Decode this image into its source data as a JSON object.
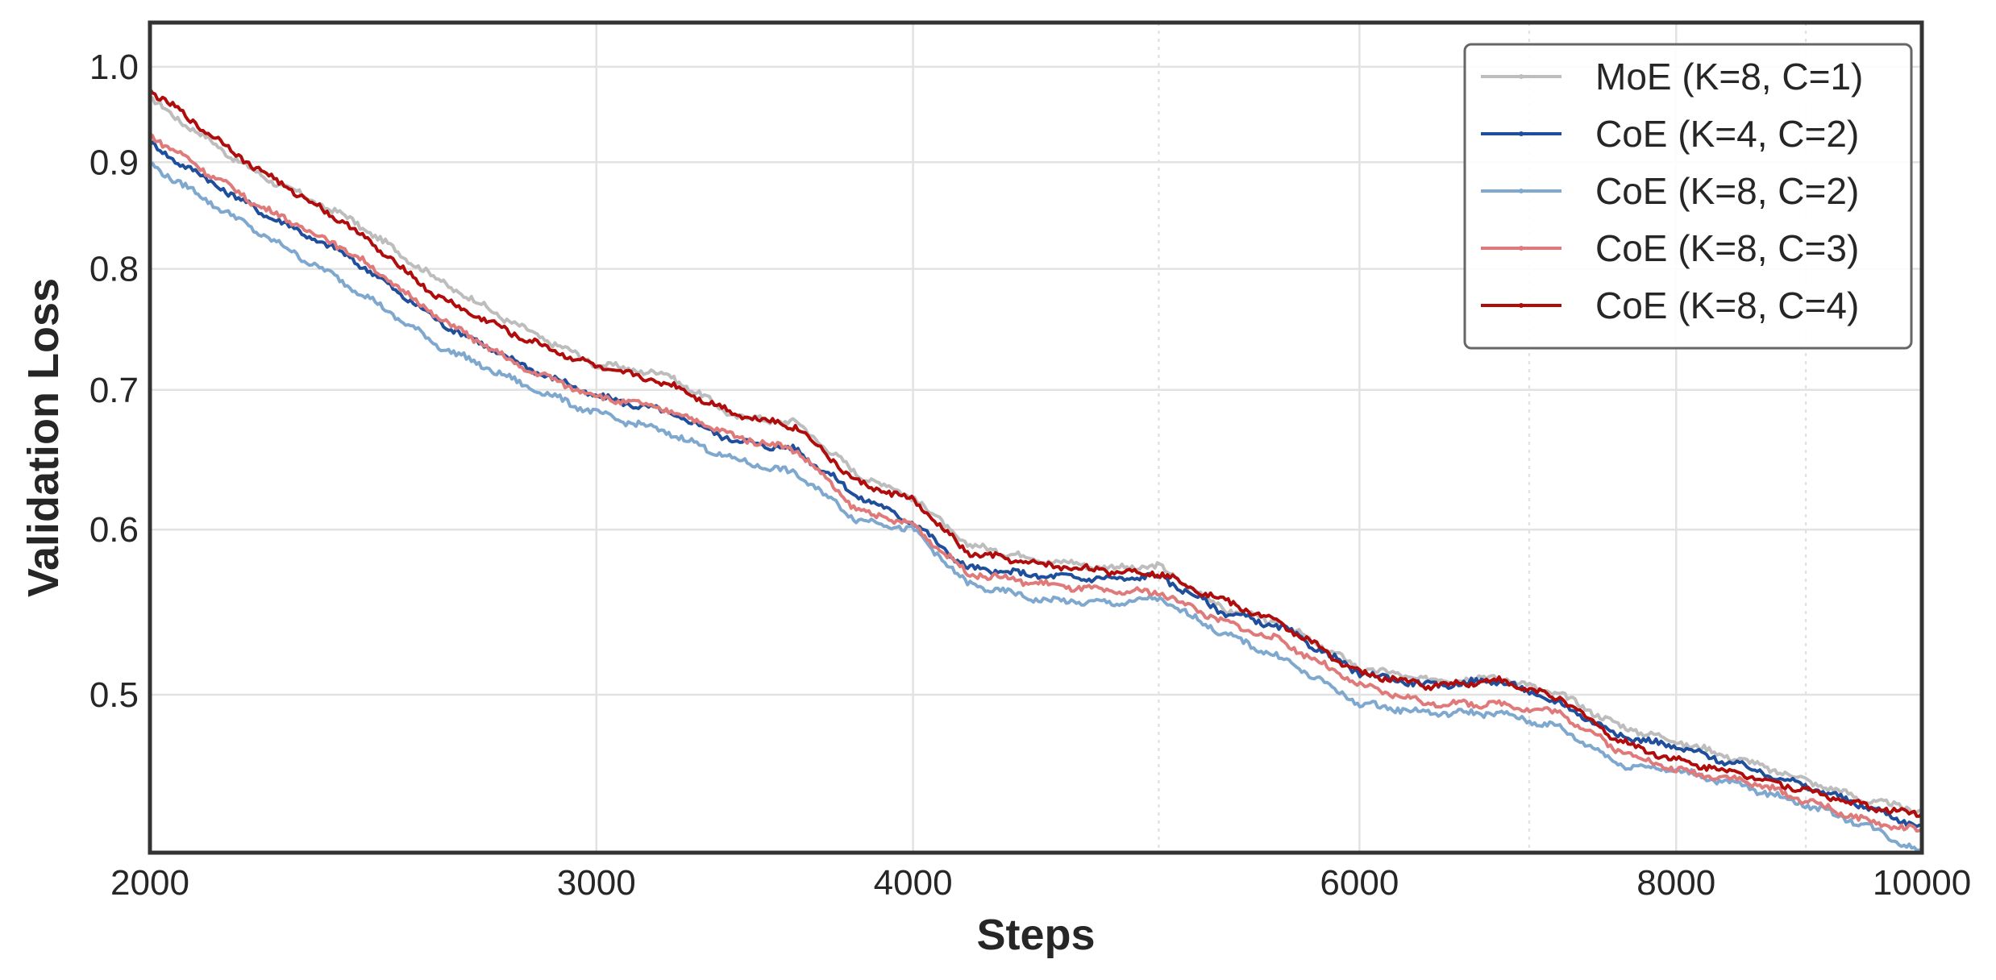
{
  "chart_data": {
    "type": "line",
    "xlabel": "Steps",
    "ylabel": "Validation Loss",
    "x_scale": "log",
    "y_scale": "log",
    "xlim": [
      2000,
      10000
    ],
    "ylim": [
      0.42,
      1.05
    ],
    "x_ticks": [
      2000,
      3000,
      4000,
      6000,
      8000,
      10000
    ],
    "x_tick_labels": [
      "2000",
      "3000",
      "4000",
      "6000",
      "8000",
      "10000"
    ],
    "x_minor_ticks": [
      5000,
      7000,
      9000
    ],
    "y_ticks": [
      0.5,
      0.6,
      0.7,
      0.8,
      0.9,
      1.0
    ],
    "y_tick_labels": [
      "0.5",
      "0.6",
      "0.7",
      "0.8",
      "0.9",
      "1.0"
    ],
    "grid": true,
    "legend_position": "top-right",
    "series": [
      {
        "name": "MoE (K=8, C=1)",
        "color": "#bdbdbd",
        "x": [
          2000,
          2200,
          2400,
          2600,
          2800,
          3000,
          3200,
          3400,
          3600,
          3800,
          4000,
          4200,
          4500,
          4800,
          5000,
          5300,
          5600,
          6000,
          6400,
          6800,
          7200,
          7600,
          8000,
          8500,
          9000,
          9500,
          10000
        ],
        "y": [
          0.965,
          0.89,
          0.845,
          0.79,
          0.75,
          0.72,
          0.712,
          0.68,
          0.675,
          0.638,
          0.622,
          0.59,
          0.58,
          0.575,
          0.576,
          0.55,
          0.54,
          0.515,
          0.508,
          0.51,
          0.5,
          0.483,
          0.475,
          0.465,
          0.455,
          0.445,
          0.44
        ]
      },
      {
        "name": "CoE (K=4, C=2)",
        "color": "#1f4e9c",
        "x": [
          2000,
          2200,
          2400,
          2600,
          2800,
          3000,
          3200,
          3400,
          3600,
          3800,
          4000,
          4200,
          4500,
          4800,
          5000,
          5300,
          5600,
          6000,
          6400,
          6800,
          7200,
          7600,
          8000,
          8500,
          9000,
          9500,
          10000
        ],
        "y": [
          0.918,
          0.855,
          0.81,
          0.755,
          0.72,
          0.695,
          0.683,
          0.662,
          0.655,
          0.623,
          0.605,
          0.575,
          0.57,
          0.568,
          0.57,
          0.548,
          0.538,
          0.512,
          0.505,
          0.508,
          0.495,
          0.478,
          0.472,
          0.462,
          0.452,
          0.442,
          0.432
        ]
      },
      {
        "name": "CoE (K=8, C=2)",
        "color": "#7fa8cf",
        "x": [
          2000,
          2200,
          2400,
          2600,
          2800,
          3000,
          3200,
          3400,
          3600,
          3800,
          4000,
          4200,
          4500,
          4800,
          5000,
          5300,
          5600,
          6000,
          6400,
          6800,
          7200,
          7600,
          8000,
          8500,
          9000,
          9500,
          10000
        ],
        "y": [
          0.898,
          0.835,
          0.785,
          0.735,
          0.705,
          0.682,
          0.668,
          0.648,
          0.638,
          0.607,
          0.6,
          0.565,
          0.555,
          0.553,
          0.556,
          0.535,
          0.52,
          0.495,
          0.49,
          0.49,
          0.482,
          0.463,
          0.46,
          0.452,
          0.443,
          0.433,
          0.42
        ]
      },
      {
        "name": "CoE (K=8, C=3)",
        "color": "#e07a7a",
        "x": [
          2000,
          2200,
          2400,
          2600,
          2800,
          3000,
          3200,
          3400,
          3600,
          3800,
          4000,
          4200,
          4500,
          4800,
          5000,
          5300,
          5600,
          6000,
          6400,
          6800,
          7200,
          7600,
          8000,
          8500,
          9000,
          9500,
          10000
        ],
        "y": [
          0.928,
          0.86,
          0.815,
          0.758,
          0.718,
          0.695,
          0.685,
          0.665,
          0.655,
          0.613,
          0.603,
          0.572,
          0.565,
          0.56,
          0.56,
          0.542,
          0.53,
          0.505,
          0.495,
          0.495,
          0.49,
          0.47,
          0.46,
          0.455,
          0.445,
          0.435,
          0.43
        ]
      },
      {
        "name": "CoE (K=8, C=4)",
        "color": "#b00c0c",
        "x": [
          2000,
          2200,
          2400,
          2600,
          2800,
          3000,
          3200,
          3400,
          3600,
          3800,
          4000,
          4200,
          4500,
          4800,
          5000,
          5300,
          5600,
          6000,
          6400,
          6800,
          7200,
          7600,
          8000,
          8500,
          9000,
          9500,
          10000
        ],
        "y": [
          0.975,
          0.895,
          0.838,
          0.775,
          0.742,
          0.718,
          0.705,
          0.682,
          0.672,
          0.632,
          0.62,
          0.585,
          0.577,
          0.573,
          0.572,
          0.555,
          0.54,
          0.512,
          0.505,
          0.508,
          0.498,
          0.475,
          0.465,
          0.458,
          0.45,
          0.442,
          0.438
        ]
      }
    ]
  }
}
